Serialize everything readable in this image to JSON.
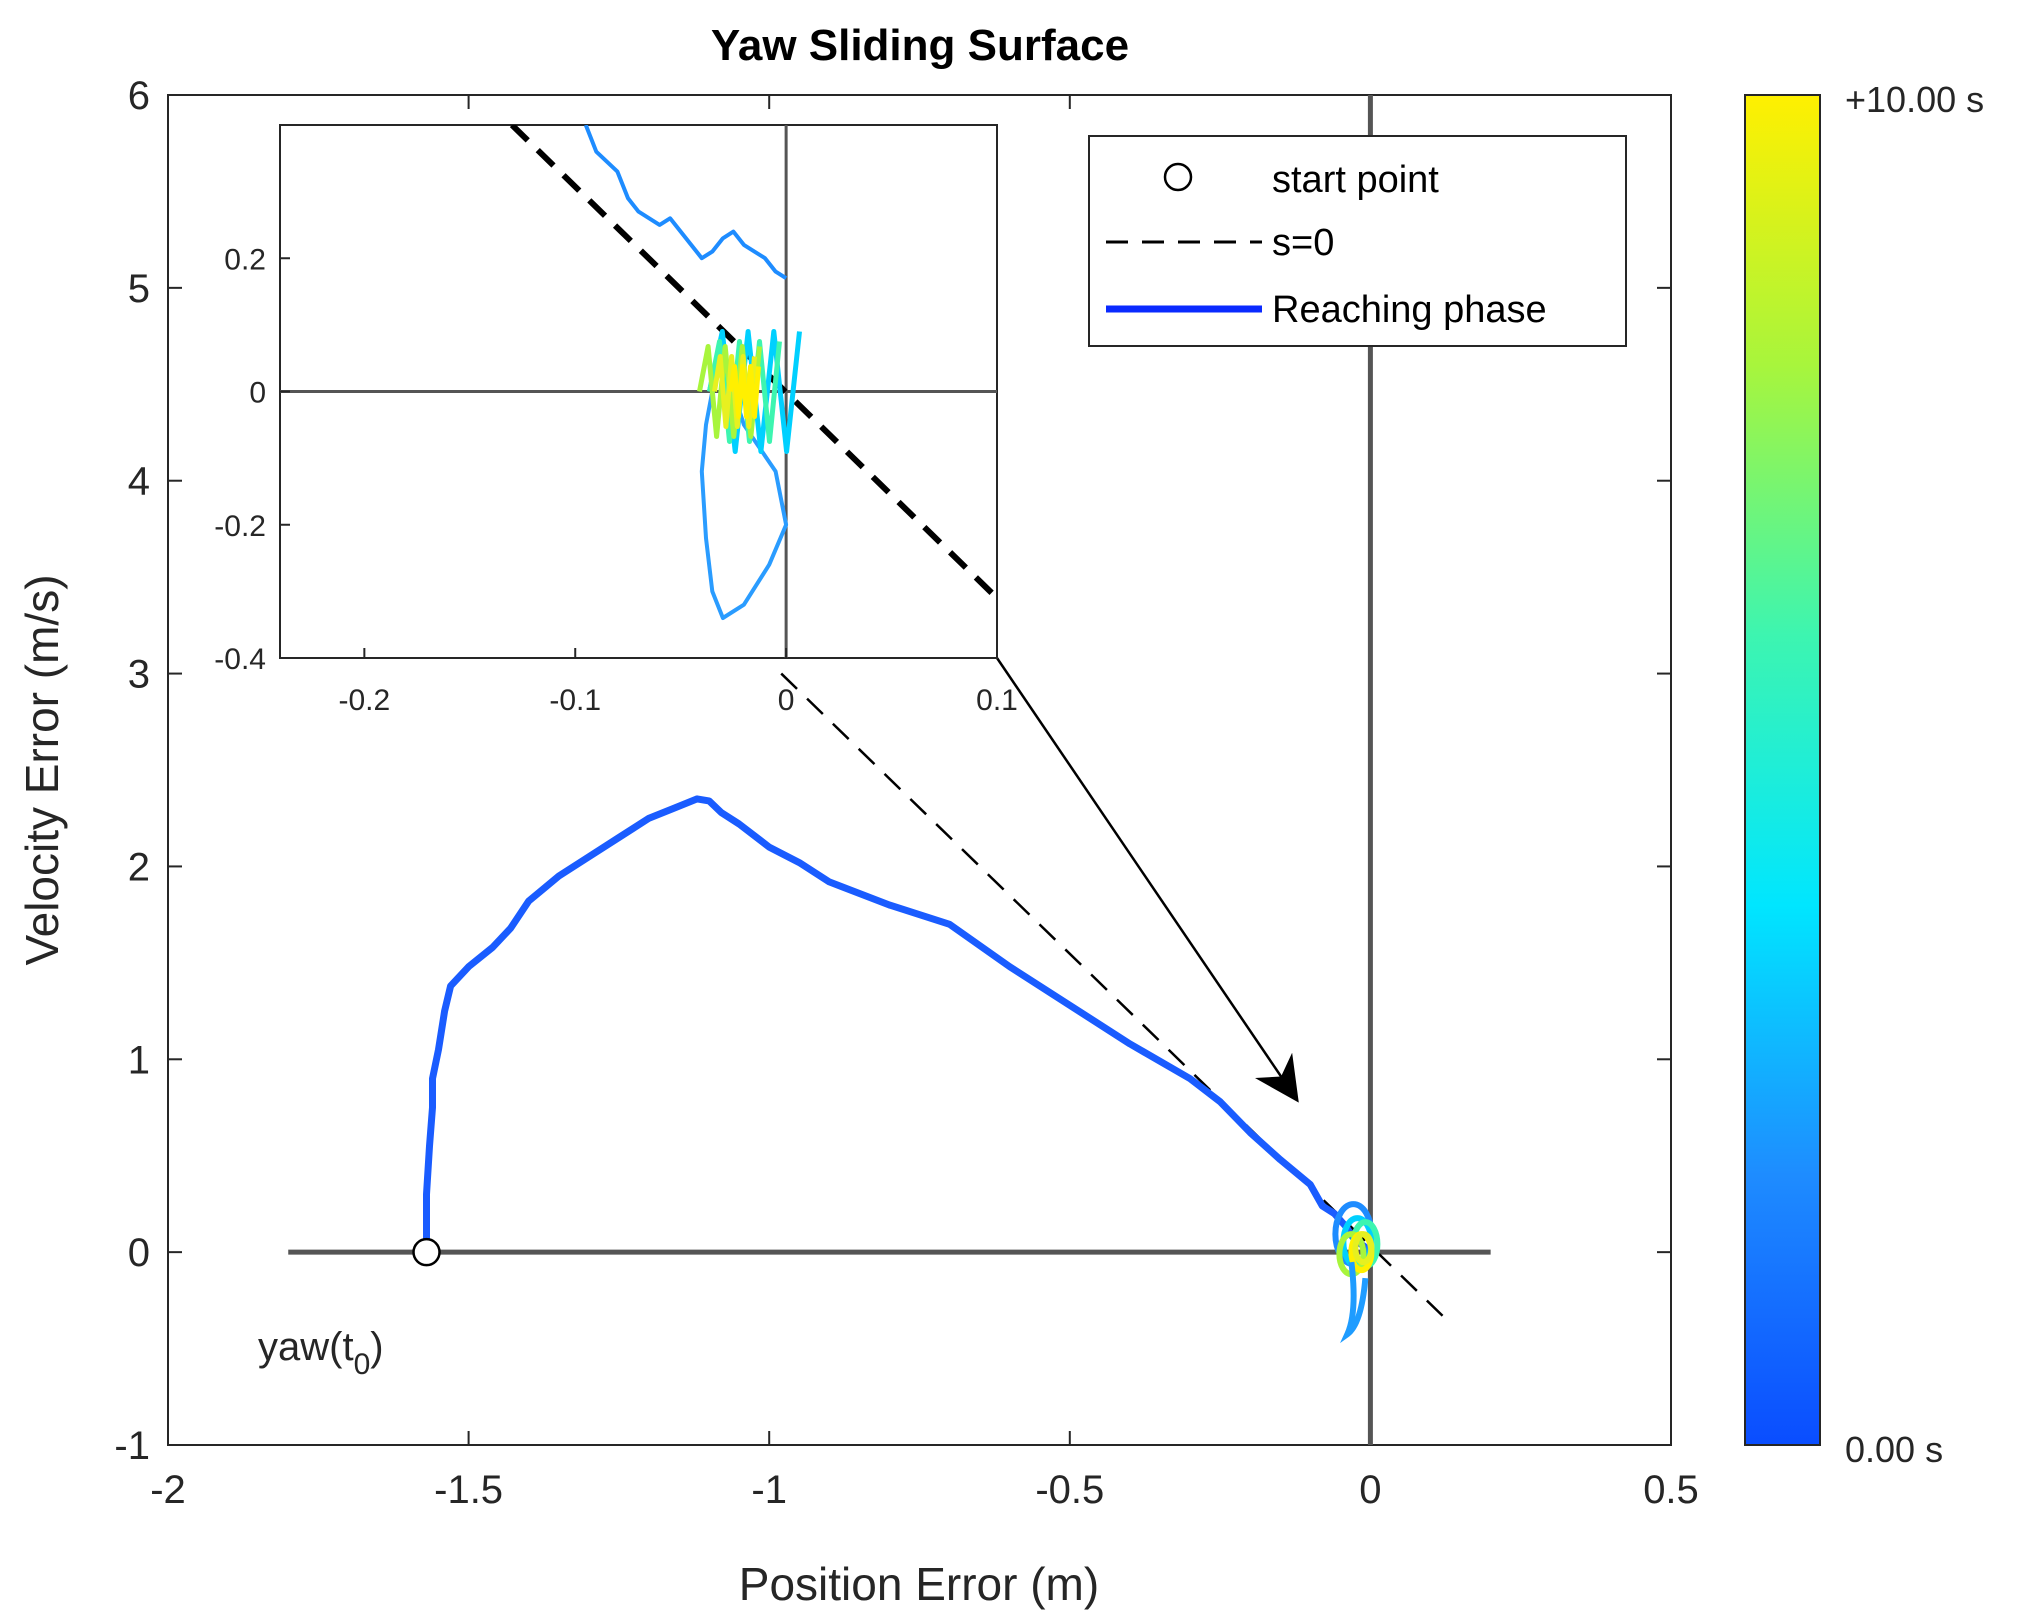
{
  "chart_data": {
    "type": "line",
    "title": "Yaw Sliding Surface",
    "xlabel": "Position Error (m)",
    "ylabel": "Velocity Error (m/s)",
    "xlim": [
      -2,
      0.5
    ],
    "ylim": [
      -1,
      6
    ],
    "xticks": [
      "-2",
      "-1.5",
      "-1",
      "-0.5",
      "0",
      "0.5"
    ],
    "yticks": [
      "-1",
      "0",
      "1",
      "2",
      "3",
      "4",
      "5",
      "6"
    ],
    "grid": false,
    "legend_position": "top-right",
    "legend": [
      {
        "label": "start point",
        "style": "circle-marker",
        "color": "#000000"
      },
      {
        "label": "s=0",
        "style": "dashed-line",
        "color": "#000000"
      },
      {
        "label": "Reaching phase",
        "style": "solid-line",
        "color": "#0a2aff"
      }
    ],
    "series": [
      {
        "name": "s=0",
        "style": "dashed",
        "color": "#000000",
        "x": [
          -0.98,
          0.12
        ],
        "y": [
          3.0,
          -0.33
        ]
      },
      {
        "name": "Reaching phase",
        "style": "solid",
        "color": "#1a5cff",
        "x": [
          -1.57,
          -1.57,
          -1.565,
          -1.56,
          -1.56,
          -1.55,
          -1.54,
          -1.53,
          -1.5,
          -1.46,
          -1.43,
          -1.4,
          -1.35,
          -1.3,
          -1.25,
          -1.2,
          -1.16,
          -1.12,
          -1.1,
          -1.08,
          -1.05,
          -1.0,
          -0.95,
          -0.9,
          -0.8,
          -0.7,
          -0.6,
          -0.5,
          -0.4,
          -0.3,
          -0.25,
          -0.2,
          -0.15,
          -0.1,
          -0.08,
          -0.06,
          -0.04,
          -0.03,
          -0.02,
          -0.01
        ],
        "y": [
          0.0,
          0.3,
          0.55,
          0.75,
          0.9,
          1.05,
          1.25,
          1.38,
          1.48,
          1.58,
          1.68,
          1.82,
          1.95,
          2.05,
          2.15,
          2.25,
          2.3,
          2.35,
          2.34,
          2.28,
          2.22,
          2.1,
          2.02,
          1.92,
          1.8,
          1.7,
          1.48,
          1.28,
          1.08,
          0.9,
          0.78,
          0.62,
          0.48,
          0.35,
          0.24,
          0.2,
          0.13,
          0.08,
          0.05,
          0.03
        ]
      }
    ],
    "start_point": {
      "x": -1.57,
      "y": 0.0
    },
    "annotations": [
      {
        "text_main": "yaw(t",
        "text_sub": "0",
        "text_close": ")",
        "x": -1.7,
        "y": -0.48
      }
    ],
    "inset": {
      "xlim": [
        -0.24,
        0.1
      ],
      "ylim": [
        -0.4,
        0.4
      ],
      "xticks": [
        "-0.2",
        "-0.1",
        "0",
        "0.1"
      ],
      "yticks": [
        "-0.4",
        "-0.2",
        "0",
        "0.2"
      ],
      "dashed_line": {
        "x": [
          -0.13,
          0.1
        ],
        "y": [
          0.4,
          -0.31
        ]
      },
      "trajectory": {
        "x": [
          -0.095,
          -0.09,
          -0.08,
          -0.075,
          -0.07,
          -0.06,
          -0.055,
          -0.05,
          -0.045,
          -0.04,
          -0.035,
          -0.03,
          -0.025,
          -0.02,
          -0.01,
          -0.005,
          0.0
        ],
        "y": [
          0.4,
          0.36,
          0.33,
          0.29,
          0.27,
          0.25,
          0.26,
          0.24,
          0.22,
          0.2,
          0.21,
          0.23,
          0.24,
          0.22,
          0.2,
          0.18,
          0.17
        ]
      },
      "loop": {
        "x": [
          -0.03,
          -0.02,
          -0.005,
          0.0,
          -0.008,
          -0.02,
          -0.03,
          -0.035,
          -0.038,
          -0.04,
          -0.038,
          -0.035,
          -0.03
        ],
        "y": [
          0.05,
          -0.05,
          -0.12,
          -0.2,
          -0.26,
          -0.32,
          -0.34,
          -0.3,
          -0.22,
          -0.12,
          -0.05,
          0.0,
          0.05
        ]
      }
    },
    "colorbar": {
      "min_label": "0.00 s",
      "max_label": "+10.00 s",
      "colors": [
        "#0a4dff",
        "#1e8cff",
        "#00e6ff",
        "#3df5b0",
        "#a8f53c",
        "#fff000"
      ]
    }
  }
}
